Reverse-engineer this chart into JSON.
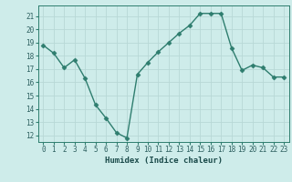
{
  "x": [
    0,
    1,
    2,
    3,
    4,
    5,
    6,
    7,
    8,
    9,
    10,
    11,
    12,
    13,
    14,
    15,
    16,
    17,
    18,
    19,
    20,
    21,
    22,
    23
  ],
  "y": [
    18.8,
    18.2,
    17.1,
    17.7,
    16.3,
    14.3,
    13.3,
    12.2,
    11.8,
    16.6,
    17.5,
    18.3,
    19.0,
    19.7,
    20.3,
    21.2,
    21.2,
    21.2,
    18.6,
    16.9,
    17.3,
    17.1,
    16.4,
    16.4
  ],
  "xlabel": "Humidex (Indice chaleur)",
  "line_color": "#2e7d6e",
  "marker": "D",
  "marker_size": 2.5,
  "bg_color": "#ceecea",
  "grid_color": "#b8d8d6",
  "tick_label_color": "#2e6060",
  "xlabel_color": "#1a4a4a",
  "ylim": [
    11.5,
    21.8
  ],
  "xlim": [
    -0.5,
    23.5
  ],
  "yticks": [
    12,
    13,
    14,
    15,
    16,
    17,
    18,
    19,
    20,
    21
  ],
  "xticks": [
    0,
    1,
    2,
    3,
    4,
    5,
    6,
    7,
    8,
    9,
    10,
    11,
    12,
    13,
    14,
    15,
    16,
    17,
    18,
    19,
    20,
    21,
    22,
    23
  ],
  "tick_fontsize": 5.5,
  "xlabel_fontsize": 6.5
}
